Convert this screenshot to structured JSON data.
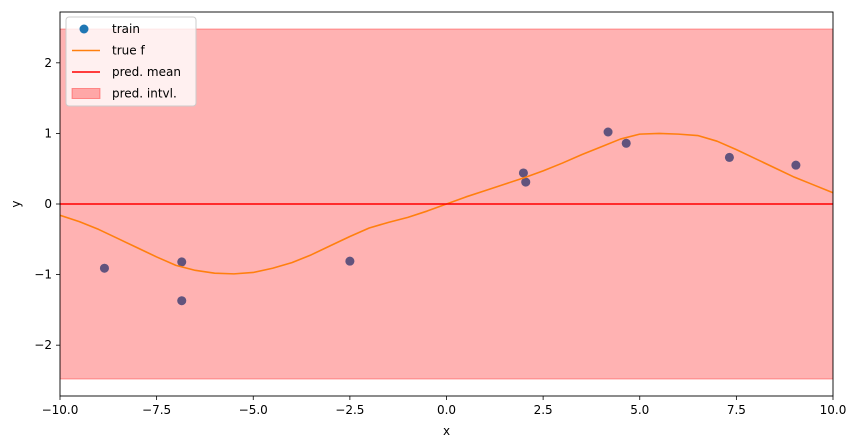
{
  "chart_data": {
    "type": "line",
    "xlabel": "x",
    "ylabel": "y",
    "xlim": [
      -10,
      10
    ],
    "ylim": [
      -2.72,
      2.72
    ],
    "x_ticks": [
      {
        "value": -10,
        "label": "−10.0"
      },
      {
        "value": -7.5,
        "label": "−7.5"
      },
      {
        "value": -5,
        "label": "−5.0"
      },
      {
        "value": -2.5,
        "label": "−2.5"
      },
      {
        "value": 0,
        "label": "0.0"
      },
      {
        "value": 2.5,
        "label": "2.5"
      },
      {
        "value": 5,
        "label": "5.0"
      },
      {
        "value": 7.5,
        "label": "7.5"
      },
      {
        "value": 10,
        "label": "10.0"
      }
    ],
    "y_ticks": [
      {
        "value": -2,
        "label": "−2"
      },
      {
        "value": -1,
        "label": "−1"
      },
      {
        "value": 0,
        "label": "0"
      },
      {
        "value": 1,
        "label": "1"
      },
      {
        "value": 2,
        "label": "2"
      }
    ],
    "grid": false,
    "legend_position": "top-left",
    "series": [
      {
        "name": "train",
        "kind": "scatter",
        "color": "#1f77b4",
        "points": [
          {
            "x": -8.85,
            "y": -0.91
          },
          {
            "x": -6.85,
            "y": -0.82
          },
          {
            "x": -6.85,
            "y": -1.37
          },
          {
            "x": -2.5,
            "y": -0.81
          },
          {
            "x": 1.99,
            "y": 0.44
          },
          {
            "x": 2.05,
            "y": 0.31
          },
          {
            "x": 4.18,
            "y": 1.02
          },
          {
            "x": 4.65,
            "y": 0.86
          },
          {
            "x": 7.32,
            "y": 0.66
          },
          {
            "x": 9.04,
            "y": 0.55
          }
        ]
      },
      {
        "name": "true f",
        "kind": "line",
        "color": "#ff7f0e",
        "x": [
          -10,
          -9.5,
          -9,
          -8.5,
          -8,
          -7.5,
          -7,
          -6.5,
          -6,
          -5.5,
          -5,
          -4.5,
          -4,
          -3.5,
          -3,
          -2.5,
          -2,
          -1.5,
          -1,
          -0.5,
          0,
          0.5,
          1,
          1.5,
          2,
          2.5,
          3,
          3.5,
          4,
          4.5,
          5,
          5.5,
          6,
          6.5,
          7,
          7.5,
          8,
          8.5,
          9,
          9.5,
          10
        ],
        "y": [
          -0.16,
          -0.25,
          -0.36,
          -0.49,
          -0.62,
          -0.75,
          -0.87,
          -0.94,
          -0.98,
          -0.99,
          -0.97,
          -0.91,
          -0.83,
          -0.72,
          -0.59,
          -0.46,
          -0.34,
          -0.26,
          -0.19,
          -0.1,
          0,
          0.1,
          0.19,
          0.28,
          0.37,
          0.47,
          0.58,
          0.7,
          0.81,
          0.92,
          0.99,
          1.0,
          0.99,
          0.97,
          0.89,
          0.77,
          0.64,
          0.51,
          0.38,
          0.27,
          0.16
        ]
      },
      {
        "name": "pred. mean",
        "kind": "line",
        "color": "#ff0000",
        "x": [
          -10,
          10
        ],
        "y": [
          0,
          0
        ]
      },
      {
        "name": "pred. intvl.",
        "kind": "band",
        "color": "#ff0000",
        "fill_opacity": 0.3,
        "x": [
          -10,
          10
        ],
        "lower": [
          -2.48,
          -2.48
        ],
        "upper": [
          2.48,
          2.48
        ]
      }
    ]
  }
}
